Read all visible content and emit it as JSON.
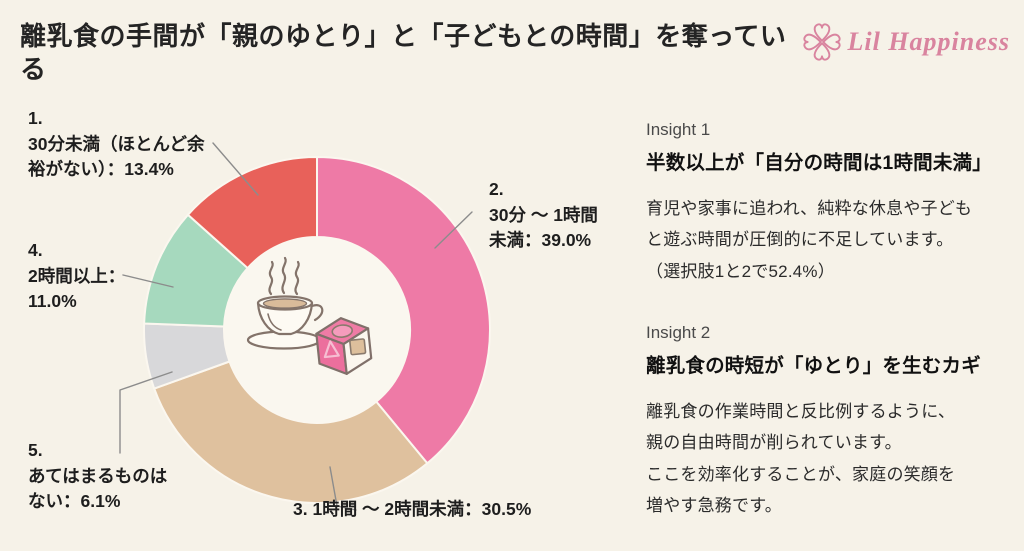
{
  "header": {
    "title": "離乳食の手間が「親のゆとり」と「子どもとの時間」を奪っている",
    "logo_text": "Lil Happiness"
  },
  "colors": {
    "background": "#F6F2E8",
    "brand_pink": "#D9849F",
    "donut_hole": "#FAF7EF",
    "separator": "#FBF7EF"
  },
  "chart_data": {
    "type": "pie",
    "donut": true,
    "direction": "clockwise",
    "start": "top",
    "title": "",
    "segments": [
      {
        "num": "2.",
        "label": "30分 ～ 1時間未満",
        "value": 39.0,
        "color": "#EE7AA6"
      },
      {
        "num": "3.",
        "label": "1時間 ～ 2時間未満",
        "value": 30.5,
        "color": "#DFC19E"
      },
      {
        "num": "5.",
        "label": "あてはまるものはない",
        "value": 6.1,
        "color": "#D8D8DA"
      },
      {
        "num": "4.",
        "label": "2時間以上",
        "value": 11.0,
        "color": "#A6D9BE"
      },
      {
        "num": "1.",
        "label": "30分未満（ほとんど余裕がない）",
        "value": 13.4,
        "color": "#E8615A"
      }
    ]
  },
  "callouts": {
    "c1": "1.\n30分未満（ほとんど余\n裕がない）：13.4%",
    "c2": "2.\n30分 ～ 1時間\n未満：39.0%",
    "c3": "3. 1時間 ～ 2時間未満：30.5%",
    "c4": "4.\n2時間以上：\n11.0%",
    "c5": "5.\nあてはまるものは\nない：6.1%"
  },
  "insights": [
    {
      "kicker": "Insight 1",
      "heading": "半数以上が「自分の時間は1時間未満」",
      "body": "育児や家事に追われ、純粋な休息や子ども\nと遊ぶ時間が圧倒的に不足しています。\n（選択肢1と2で52.4%）"
    },
    {
      "kicker": "Insight 2",
      "heading": "離乳食の時短が「ゆとり」を生むカギ",
      "body": "離乳食の作業時間と反比例するように、\n親の自由時間が削られています。\nここを効率化することが、家庭の笑顔を\n増やす急務です。"
    }
  ]
}
